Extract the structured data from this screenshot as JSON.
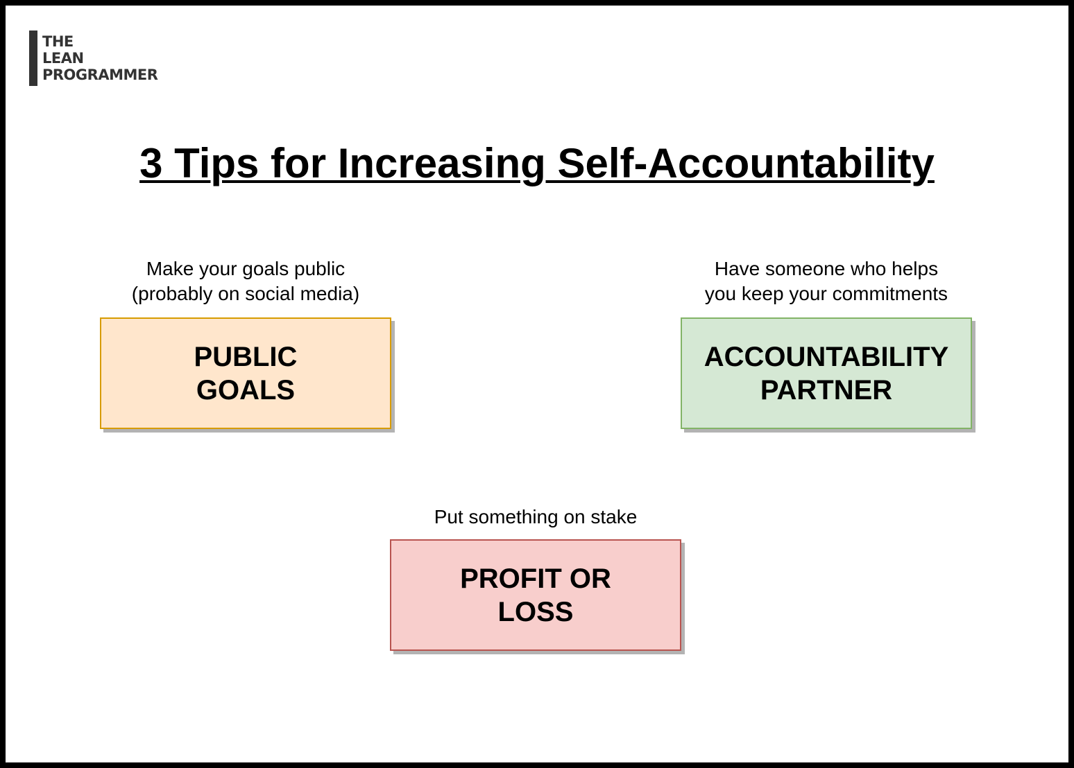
{
  "logo": {
    "lines": [
      "THE",
      "LEAN",
      "PROGRAMMER"
    ]
  },
  "title": "3 Tips for Increasing Self-Accountability",
  "tips": [
    {
      "caption_lines": [
        "Make your goals public",
        "(probably on social media)"
      ],
      "box_lines": [
        "PUBLIC",
        "GOALS"
      ],
      "fill": "#ffe6cc",
      "stroke": "#d79b00"
    },
    {
      "caption_lines": [
        "Have someone who helps",
        "you keep your commitments"
      ],
      "box_lines": [
        "ACCOUNTABILITY",
        "PARTNER"
      ],
      "fill": "#d5e8d4",
      "stroke": "#82b366"
    },
    {
      "caption_lines": [
        "Put something on stake"
      ],
      "box_lines": [
        "PROFIT OR",
        "LOSS"
      ],
      "fill": "#f8cecc",
      "stroke": "#b85450"
    }
  ]
}
